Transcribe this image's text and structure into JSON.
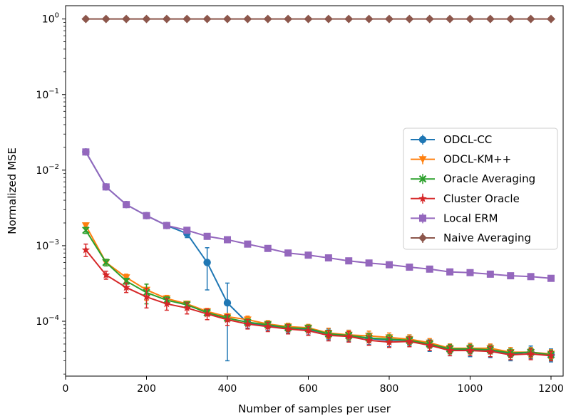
{
  "chart_data": {
    "type": "line",
    "xlabel": "Number of samples per user",
    "ylabel": "Normalized MSE",
    "xlim": [
      0,
      1230
    ],
    "ylim": [
      1.88e-05,
      1.5
    ],
    "yscale": "log",
    "grid": false,
    "legend_placement": "center-right",
    "x_ticks": [
      {
        "value": 0,
        "label": "0"
      },
      {
        "value": 200,
        "label": "200"
      },
      {
        "value": 400,
        "label": "400"
      },
      {
        "value": 600,
        "label": "600"
      },
      {
        "value": 800,
        "label": "800"
      },
      {
        "value": 1000,
        "label": "1000"
      },
      {
        "value": 1200,
        "label": "1200"
      }
    ],
    "y_ticks": [
      {
        "value": 1,
        "base": "10",
        "exp": "0"
      },
      {
        "value": 0.1,
        "base": "10",
        "exp": "−1"
      },
      {
        "value": 0.01,
        "base": "10",
        "exp": "−2"
      },
      {
        "value": 0.001,
        "base": "10",
        "exp": "−3"
      },
      {
        "value": 0.0001,
        "base": "10",
        "exp": "−4"
      }
    ],
    "x": [
      50,
      100,
      150,
      200,
      250,
      300,
      350,
      400,
      450,
      500,
      550,
      600,
      650,
      700,
      750,
      800,
      850,
      900,
      950,
      1000,
      1050,
      1100,
      1150,
      1200
    ],
    "series": [
      {
        "name": "ODCL-CC",
        "color": "#1f77b4",
        "marker": "circle",
        "values": [
          0.0174,
          0.006,
          0.0035,
          0.0025,
          0.00185,
          0.00145,
          0.0006,
          0.000175,
          9.5e-05,
          8.8e-05,
          8.2e-05,
          7.8e-05,
          6.8e-05,
          6.5e-05,
          5.9e-05,
          5.6e-05,
          5.6e-05,
          4.9e-05,
          4.2e-05,
          4.2e-05,
          4.1e-05,
          3.7e-05,
          3.9e-05,
          3.6e-05
        ],
        "err_low": [
          0.0162,
          0.0056,
          0.0033,
          0.0024,
          0.00175,
          0.00128,
          0.00026,
          3e-05,
          8.1e-05,
          7.6e-05,
          7e-05,
          6.6e-05,
          5.7e-05,
          5.4e-05,
          4.9e-05,
          4.6e-05,
          4.7e-05,
          4e-05,
          3.5e-05,
          3.4e-05,
          3.3e-05,
          3e-05,
          3.2e-05,
          2.9e-05
        ],
        "err_high": [
          0.0188,
          0.0064,
          0.0037,
          0.0026,
          0.00195,
          0.00165,
          0.00094,
          0.00032,
          0.00011,
          0.0001,
          9.4e-05,
          9e-05,
          7.9e-05,
          7.6e-05,
          7e-05,
          6.6e-05,
          6.6e-05,
          5.8e-05,
          5e-05,
          5.1e-05,
          4.9e-05,
          4.5e-05,
          4.7e-05,
          4.3e-05
        ]
      },
      {
        "name": "ODCL-KM++",
        "color": "#ff7f0e",
        "marker": "triangle-down",
        "values": [
          0.00185,
          0.0006,
          0.00038,
          0.00026,
          0.0002,
          0.00017,
          0.000135,
          0.000115,
          0.000105,
          9.2e-05,
          8.5e-05,
          8.2e-05,
          7e-05,
          6.6e-05,
          6.4e-05,
          6.1e-05,
          5.8e-05,
          5.2e-05,
          4.4e-05,
          4.4e-05,
          4.4e-05,
          3.9e-05,
          3.9e-05,
          3.7e-05
        ],
        "err_low": [
          0.0017,
          0.00054,
          0.00034,
          0.00019,
          0.00018,
          0.000155,
          0.000122,
          0.000104,
          9.3e-05,
          8.2e-05,
          7.6e-05,
          7.3e-05,
          5.9e-05,
          5.6e-05,
          5.4e-05,
          5.2e-05,
          5e-05,
          4.5e-05,
          3.8e-05,
          3.7e-05,
          3.8e-05,
          3.3e-05,
          3.3e-05,
          3.2e-05
        ],
        "err_high": [
          0.002,
          0.00066,
          0.00042,
          0.00031,
          0.00022,
          0.000185,
          0.000148,
          0.000126,
          0.000117,
          0.000102,
          9.4e-05,
          9.1e-05,
          8.1e-05,
          7.6e-05,
          7.4e-05,
          7e-05,
          6.6e-05,
          5.9e-05,
          5e-05,
          5.1e-05,
          5e-05,
          4.5e-05,
          4.5e-05,
          4.2e-05
        ]
      },
      {
        "name": "Oracle Averaging",
        "color": "#2ca02c",
        "marker": "x",
        "values": [
          0.0016,
          0.0006,
          0.00034,
          0.00024,
          0.00019,
          0.000165,
          0.00013,
          0.00011,
          9.7e-05,
          9e-05,
          8.2e-05,
          8e-05,
          6.8e-05,
          6.5e-05,
          6e-05,
          5.8e-05,
          5.6e-05,
          5e-05,
          4.3e-05,
          4.3e-05,
          4.2e-05,
          3.8e-05,
          3.9e-05,
          3.6e-05
        ],
        "err_low": [
          0.00145,
          0.00054,
          0.00031,
          0.00017,
          0.00017,
          0.00015,
          0.000118,
          0.0001,
          8.7e-05,
          8.1e-05,
          7.3e-05,
          7.1e-05,
          6e-05,
          5.7e-05,
          5.2e-05,
          5e-05,
          4.9e-05,
          4.4e-05,
          3.7e-05,
          3.7e-05,
          3.7e-05,
          3.3e-05,
          3.4e-05,
          3.1e-05
        ],
        "err_high": [
          0.00175,
          0.00066,
          0.00037,
          0.00031,
          0.00021,
          0.00018,
          0.000142,
          0.00012,
          0.000107,
          9.9e-05,
          9.1e-05,
          8.9e-05,
          7.6e-05,
          7.3e-05,
          6.8e-05,
          6.6e-05,
          6.3e-05,
          5.6e-05,
          4.9e-05,
          4.9e-05,
          4.7e-05,
          4.3e-05,
          4.4e-05,
          4.1e-05
        ]
      },
      {
        "name": "Cluster Oracle",
        "color": "#d62728",
        "marker": "star",
        "values": [
          0.00088,
          0.00041,
          0.00028,
          0.00021,
          0.00017,
          0.00015,
          0.000125,
          0.000105,
          9.2e-05,
          8.5e-05,
          7.9e-05,
          7.5e-05,
          6.5e-05,
          6.3e-05,
          5.6e-05,
          5.3e-05,
          5.4e-05,
          4.8e-05,
          4.1e-05,
          4.1e-05,
          4e-05,
          3.6e-05,
          3.7e-05,
          3.5e-05
        ],
        "err_low": [
          0.00072,
          0.00036,
          0.00024,
          0.00015,
          0.00014,
          0.000125,
          0.000105,
          8.8e-05,
          7.9e-05,
          7.3e-05,
          6.8e-05,
          6.5e-05,
          5.5e-05,
          5.3e-05,
          4.8e-05,
          4.5e-05,
          4.6e-05,
          4.1e-05,
          3.5e-05,
          3.5e-05,
          3.4e-05,
          3.1e-05,
          3.1e-05,
          3e-05
        ],
        "err_high": [
          0.00105,
          0.00046,
          0.00032,
          0.00027,
          0.0002,
          0.000175,
          0.000145,
          0.000122,
          0.000105,
          9.7e-05,
          9e-05,
          8.5e-05,
          7.5e-05,
          7.3e-05,
          6.4e-05,
          6.1e-05,
          6.2e-05,
          5.5e-05,
          4.7e-05,
          4.7e-05,
          4.6e-05,
          4.1e-05,
          4.3e-05,
          4e-05
        ]
      },
      {
        "name": "Local ERM",
        "color": "#9467bd",
        "marker": "square",
        "values": [
          0.0174,
          0.006,
          0.0035,
          0.0025,
          0.00185,
          0.0016,
          0.00133,
          0.0012,
          0.00105,
          0.00092,
          0.0008,
          0.00075,
          0.00069,
          0.00063,
          0.00059,
          0.00056,
          0.00052,
          0.00049,
          0.00045,
          0.00044,
          0.00042,
          0.0004,
          0.00039,
          0.00037
        ],
        "err_low": [
          0.0162,
          0.0056,
          0.0033,
          0.0024,
          0.00175,
          0.00153,
          0.00127,
          0.00115,
          0.001,
          0.00088,
          0.00077,
          0.00072,
          0.00066,
          0.0006,
          0.00057,
          0.00054,
          0.0005,
          0.00047,
          0.00043,
          0.00042,
          0.0004,
          0.00038,
          0.00037,
          0.00035
        ],
        "err_high": [
          0.0188,
          0.0064,
          0.0037,
          0.0026,
          0.00195,
          0.00167,
          0.00139,
          0.00125,
          0.0011,
          0.00096,
          0.00083,
          0.00078,
          0.00072,
          0.00066,
          0.00061,
          0.00058,
          0.00054,
          0.00051,
          0.00047,
          0.00046,
          0.00044,
          0.00042,
          0.00041,
          0.00039
        ]
      },
      {
        "name": "Naive Averaging",
        "color": "#8c564b",
        "marker": "diamond",
        "values": [
          1,
          1,
          1,
          1,
          1,
          1,
          1,
          1,
          1,
          1,
          1,
          1,
          1,
          1,
          1,
          1,
          1,
          1,
          1,
          1,
          1,
          1,
          1,
          1
        ],
        "err_low": [
          1,
          1,
          1,
          1,
          1,
          1,
          1,
          1,
          1,
          1,
          1,
          1,
          1,
          1,
          1,
          1,
          1,
          1,
          1,
          1,
          1,
          1,
          1,
          1
        ],
        "err_high": [
          1,
          1,
          1,
          1,
          1,
          1,
          1,
          1,
          1,
          1,
          1,
          1,
          1,
          1,
          1,
          1,
          1,
          1,
          1,
          1,
          1,
          1,
          1,
          1
        ]
      }
    ]
  }
}
